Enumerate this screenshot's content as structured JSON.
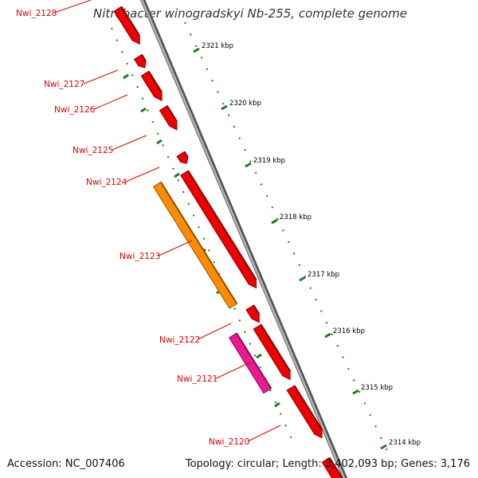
{
  "title": "Nitrobacter winogradskyi Nb-255, complete genome",
  "footer": {
    "accession": "Accession: NC_007406",
    "summary": "Topology: circular; Length: 3,402,093 bp; Genes: 3,176"
  },
  "colors": {
    "backbone": "#8a8a8a",
    "tick": "#1e7a1e",
    "label": "#e00000",
    "gene_red": "#ee0000",
    "gene_orange": "#ff8c00",
    "gene_pink": "#ee1890",
    "gene_olive": "#c8c070"
  },
  "kbp_ticks": [
    "2321 kbp",
    "2320 kbp",
    "2319 kbp",
    "2318 kbp",
    "2317 kbp",
    "2316 kbp",
    "2315 kbp",
    "2314 kbp"
  ],
  "gene_labels": [
    "Nwi_2128",
    "Nwi_2127",
    "Nwi_2126",
    "Nwi_2125",
    "Nwi_2124",
    "Nwi_2123",
    "Nwi_2122",
    "Nwi_2121",
    "Nwi_2120"
  ]
}
